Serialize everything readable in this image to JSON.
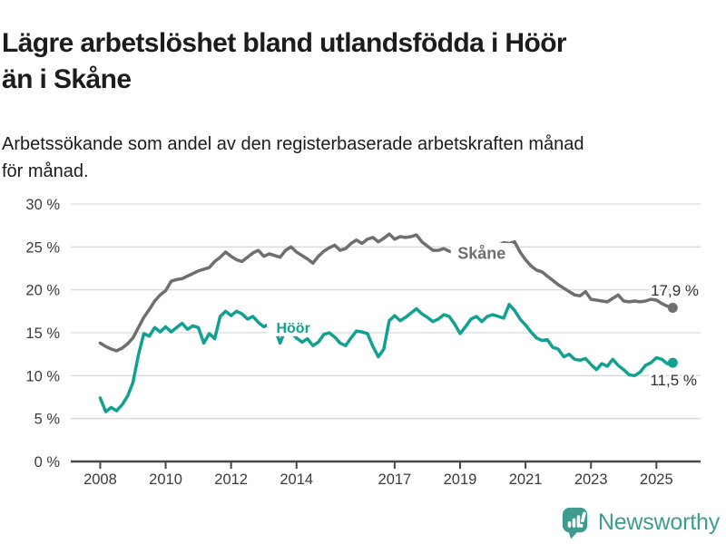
{
  "header": {
    "title_line1": "Lägre arbetslöshet bland utlandsfödda i Höör",
    "title_line2": "än i Skåne",
    "subtitle_line1": "Arbetssökande som andel av den registerbaserade arbetskraften månad",
    "subtitle_line2": "för månad."
  },
  "chart_data": {
    "type": "line",
    "title": "Lägre arbetslöshet bland utlandsfödda i Höör än i Skåne",
    "subtitle": "Arbetssökande som andel av den registerbaserade arbetskraften månad för månad.",
    "grid": true,
    "legend_position": "inline-labels-on-lines",
    "x_start_year": 2008.0,
    "x_step_years": 0.1666667,
    "xlim": [
      2007.1,
      2026.3
    ],
    "ylim": [
      0,
      30
    ],
    "x_ticks": [
      {
        "label": "2008",
        "year": 2008
      },
      {
        "label": "2010",
        "year": 2010
      },
      {
        "label": "2012",
        "year": 2012
      },
      {
        "label": "2014",
        "year": 2014
      },
      {
        "label": "2017",
        "year": 2017
      },
      {
        "label": "2019",
        "year": 2019
      },
      {
        "label": "2021",
        "year": 2021
      },
      {
        "label": "2023",
        "year": 2023
      },
      {
        "label": "2025",
        "year": 2025
      }
    ],
    "y_ticks": [
      {
        "label": "0 %",
        "value": 0
      },
      {
        "label": "5 %",
        "value": 5
      },
      {
        "label": "10 %",
        "value": 10
      },
      {
        "label": "15 %",
        "value": 15
      },
      {
        "label": "20 %",
        "value": 20
      },
      {
        "label": "25 %",
        "value": 25
      },
      {
        "label": "30 %",
        "value": 30
      }
    ],
    "series": [
      {
        "name": "Skåne",
        "color": "#6f6f6f",
        "end_label": "17,9 %",
        "inline_label": {
          "text": "Skåne",
          "year": 2019.66,
          "value": 24.3
        },
        "values": [
          13.8,
          13.4,
          13.1,
          12.9,
          13.2,
          13.7,
          14.4,
          15.6,
          16.8,
          17.7,
          18.7,
          19.4,
          19.9,
          21.0,
          21.2,
          21.3,
          21.6,
          21.9,
          22.2,
          22.4,
          22.6,
          23.3,
          23.8,
          24.4,
          23.9,
          23.5,
          23.3,
          23.8,
          24.3,
          24.6,
          23.9,
          24.2,
          24.0,
          23.8,
          24.6,
          25.0,
          24.4,
          24.0,
          23.6,
          23.1,
          23.9,
          24.5,
          24.9,
          25.2,
          24.6,
          24.8,
          25.4,
          25.8,
          25.4,
          25.9,
          26.1,
          25.6,
          26.0,
          26.5,
          25.9,
          26.2,
          26.1,
          26.2,
          26.4,
          25.6,
          25.1,
          24.6,
          24.6,
          24.8,
          24.5,
          24.3,
          24.2,
          24.4,
          24.3,
          24.4,
          24.5,
          24.6,
          24.7,
          25.2,
          25.5,
          25.4,
          25.6,
          24.4,
          23.5,
          22.8,
          22.3,
          22.1,
          21.6,
          21.1,
          20.6,
          20.2,
          19.8,
          19.4,
          19.3,
          19.8,
          18.9,
          18.8,
          18.7,
          18.6,
          19.0,
          19.4,
          18.7,
          18.6,
          18.7,
          18.6,
          18.7,
          18.9,
          18.8,
          18.4,
          18.1,
          17.9
        ]
      },
      {
        "name": "Höör",
        "color": "#12a191",
        "end_label": "11,5 %",
        "inline_label": {
          "text": "Höör",
          "year": 2013.9,
          "value": 15.6
        },
        "values": [
          7.4,
          5.8,
          6.3,
          5.9,
          6.6,
          7.6,
          9.2,
          12.4,
          14.9,
          14.6,
          15.6,
          15.1,
          15.7,
          15.1,
          15.6,
          16.1,
          15.4,
          15.8,
          15.6,
          13.8,
          14.9,
          14.3,
          16.9,
          17.5,
          17.0,
          17.5,
          17.2,
          16.6,
          16.9,
          16.2,
          15.7,
          16.0,
          15.5,
          13.8,
          15.5,
          15.0,
          14.4,
          13.9,
          14.3,
          13.5,
          13.9,
          14.8,
          15.0,
          14.5,
          13.8,
          13.5,
          14.4,
          15.2,
          15.1,
          14.9,
          13.4,
          12.2,
          13.1,
          16.4,
          17.0,
          16.4,
          16.8,
          17.3,
          17.8,
          17.2,
          16.8,
          16.3,
          16.6,
          17.1,
          16.9,
          16.0,
          14.9,
          15.7,
          16.6,
          16.9,
          16.3,
          16.9,
          17.1,
          16.9,
          16.7,
          18.3,
          17.6,
          16.6,
          15.9,
          15.1,
          14.4,
          14.1,
          14.2,
          13.3,
          13.1,
          12.2,
          12.5,
          11.9,
          11.8,
          12.0,
          11.3,
          10.7,
          11.4,
          11.1,
          11.9,
          11.2,
          10.7,
          10.1,
          10.0,
          10.4,
          11.2,
          11.5,
          12.1,
          11.9,
          11.4,
          11.5
        ]
      }
    ]
  },
  "footer": {
    "brand": "Newsworthy",
    "brand_color": "#3e9c8f",
    "logo_icon": "newsworthy-bubble-barchart-icon"
  }
}
